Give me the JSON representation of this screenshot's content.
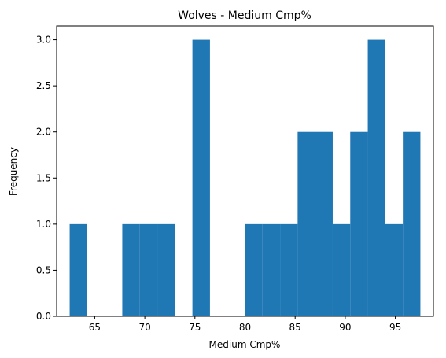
{
  "chart_data": {
    "type": "bar",
    "title": "Wolves - Medium Cmp%",
    "xlabel": "Medium Cmp%",
    "ylabel": "Frequency",
    "xlim": [
      61.2,
      98.8
    ],
    "ylim": [
      0,
      3.15
    ],
    "xticks": [
      65,
      70,
      75,
      80,
      85,
      90,
      95
    ],
    "yticks": [
      0.0,
      0.5,
      1.0,
      1.5,
      2.0,
      2.5,
      3.0
    ],
    "grid": false,
    "color": "#1f77b4",
    "bin_edges": [
      62.5,
      64.25,
      66.0,
      67.75,
      69.5,
      71.25,
      73.0,
      74.75,
      76.5,
      78.25,
      80.0,
      81.75,
      83.5,
      85.25,
      87.0,
      88.75,
      90.5,
      92.25,
      94.0,
      95.75,
      97.5
    ],
    "counts": [
      1,
      0,
      0,
      1,
      1,
      1,
      0,
      3,
      0,
      0,
      1,
      1,
      1,
      2,
      2,
      1,
      2,
      3,
      1,
      2
    ]
  }
}
